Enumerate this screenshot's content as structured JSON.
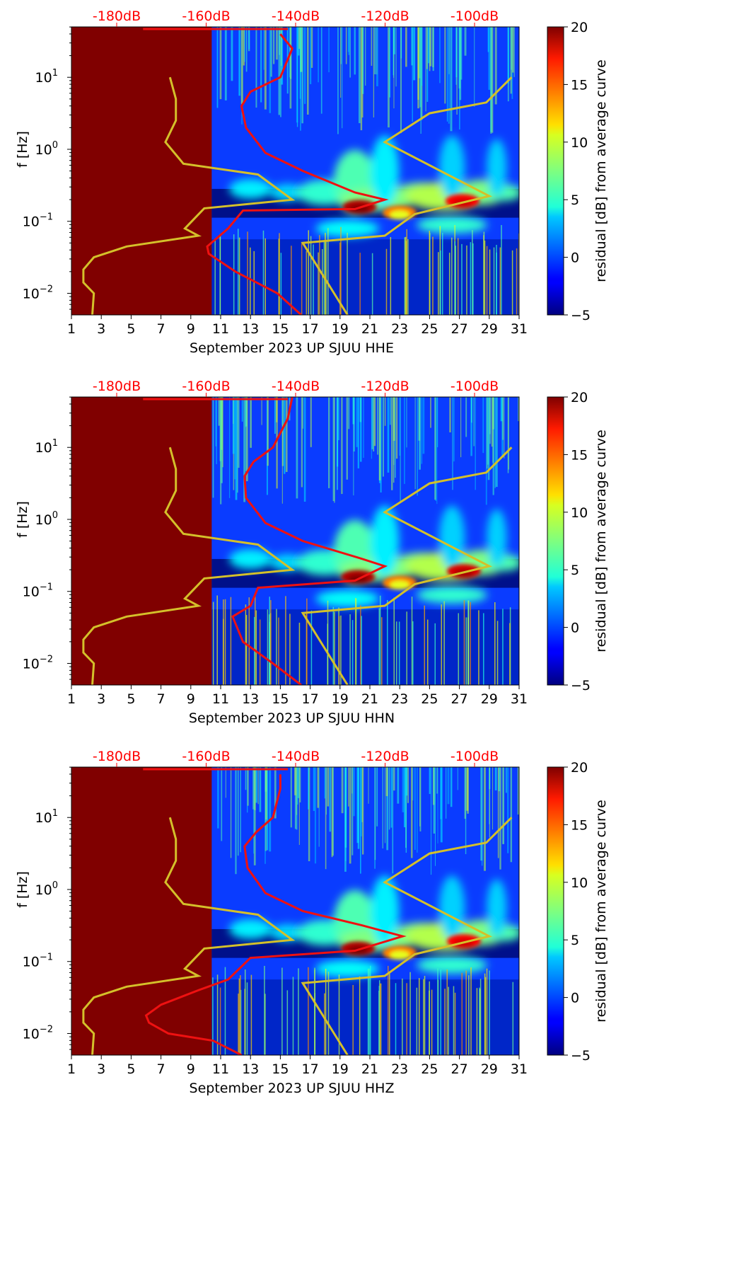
{
  "figure": {
    "type": "spectrogram-panels",
    "common": {
      "ylabel": "f [Hz]",
      "colorbar_label": "residual [dB] from average curve",
      "colorbar_range": [
        -5,
        20
      ],
      "colorbar_ticks": [
        "20",
        "15",
        "10",
        "5",
        "0",
        "−5"
      ],
      "x_tick_labels": [
        "1",
        "3",
        "5",
        "7",
        "9",
        "11",
        "13",
        "15",
        "17",
        "19",
        "21",
        "23",
        "25",
        "27",
        "29",
        "31"
      ],
      "y_tick_labels": [
        {
          "base": "10",
          "exp": "1"
        },
        {
          "base": "10",
          "exp": "0"
        },
        {
          "base": "10",
          "exp": "−1"
        },
        {
          "base": "10",
          "exp": "−2"
        }
      ],
      "top_axis_labels": [
        "-180dB",
        "-160dB",
        "-140dB",
        "-120dB",
        "-100dB"
      ],
      "masked_region_color": "#800000",
      "noise_model_color": "#d4c02a",
      "psd_curve_color": "#ee1111"
    }
  },
  "chart_data": [
    {
      "type": "heatmap",
      "xlabel": "September 2023 UP SJUU  HHE",
      "ylabel": "f [Hz]",
      "xlim": [
        1,
        31
      ],
      "ylim_log10_hz": [
        -2.3,
        1.7
      ],
      "masked_until_day": 10.4,
      "noise_model_curve_day_vs_log10f": [
        [
          7.6,
          1.0
        ],
        [
          8.0,
          0.7
        ],
        [
          8.0,
          0.4
        ],
        [
          7.3,
          0.1
        ],
        [
          8.5,
          -0.2
        ],
        [
          13.5,
          -0.35
        ],
        [
          15.8,
          -0.7
        ],
        [
          9.9,
          -0.82
        ],
        [
          8.6,
          -1.1
        ],
        [
          9.5,
          -1.2
        ],
        [
          4.7,
          -1.35
        ],
        [
          2.5,
          -1.5
        ],
        [
          1.8,
          -1.67
        ],
        [
          1.8,
          -1.85
        ],
        [
          2.5,
          -2.0
        ],
        [
          2.4,
          -2.3
        ]
      ],
      "noise_model_upper_curve": [
        [
          19.5,
          -2.3
        ],
        [
          16.5,
          -1.3
        ],
        [
          22.0,
          -1.2
        ],
        [
          24.0,
          -0.9
        ],
        [
          29.0,
          -0.65
        ],
        [
          22.0,
          0.1
        ],
        [
          25.0,
          0.5
        ],
        [
          28.8,
          0.65
        ],
        [
          30.5,
          1.0
        ]
      ],
      "psd_curve_day_vs_log10f": [
        [
          16.4,
          -2.3
        ],
        [
          14.8,
          -2.0
        ],
        [
          12.0,
          -1.7
        ],
        [
          10.2,
          -1.45
        ],
        [
          10.1,
          -1.35
        ],
        [
          11.5,
          -1.1
        ],
        [
          12.5,
          -0.85
        ],
        [
          20.0,
          -0.83
        ],
        [
          22.0,
          -0.7
        ],
        [
          20.0,
          -0.6
        ],
        [
          16.5,
          -0.3
        ],
        [
          14.0,
          -0.05
        ],
        [
          12.7,
          0.3
        ],
        [
          12.4,
          0.6
        ],
        [
          13.0,
          0.8
        ],
        [
          15.0,
          1.0
        ],
        [
          15.8,
          1.4
        ],
        [
          15.0,
          1.6
        ]
      ],
      "hot_spots": [
        {
          "day": 20.3,
          "log10f": -0.8,
          "value": 20
        },
        {
          "day": 27.2,
          "log10f": -0.72,
          "value": 18
        },
        {
          "day": 23.0,
          "log10f": -0.88,
          "value": 10
        }
      ]
    },
    {
      "type": "heatmap",
      "xlabel": "September 2023 UP SJUU  HHN",
      "ylabel": "f [Hz]",
      "xlim": [
        1,
        31
      ],
      "ylim_log10_hz": [
        -2.3,
        1.7
      ],
      "masked_until_day": 10.4,
      "noise_model_curve_day_vs_log10f": [
        [
          7.6,
          1.0
        ],
        [
          8.0,
          0.7
        ],
        [
          8.0,
          0.4
        ],
        [
          7.3,
          0.1
        ],
        [
          8.5,
          -0.2
        ],
        [
          13.5,
          -0.35
        ],
        [
          15.8,
          -0.7
        ],
        [
          9.9,
          -0.82
        ],
        [
          8.6,
          -1.1
        ],
        [
          9.5,
          -1.2
        ],
        [
          4.7,
          -1.35
        ],
        [
          2.5,
          -1.5
        ],
        [
          1.8,
          -1.67
        ],
        [
          1.8,
          -1.85
        ],
        [
          2.5,
          -2.0
        ],
        [
          2.4,
          -2.3
        ]
      ],
      "noise_model_upper_curve": [
        [
          19.5,
          -2.3
        ],
        [
          16.5,
          -1.3
        ],
        [
          22.0,
          -1.2
        ],
        [
          24.0,
          -0.9
        ],
        [
          29.0,
          -0.65
        ],
        [
          22.0,
          0.1
        ],
        [
          25.0,
          0.5
        ],
        [
          28.8,
          0.65
        ],
        [
          30.5,
          1.0
        ]
      ],
      "psd_curve_day_vs_log10f": [
        [
          16.4,
          -2.3
        ],
        [
          14.5,
          -2.0
        ],
        [
          12.5,
          -1.7
        ],
        [
          11.8,
          -1.35
        ],
        [
          13.0,
          -1.2
        ],
        [
          13.5,
          -0.95
        ],
        [
          20.0,
          -0.85
        ],
        [
          22.0,
          -0.65
        ],
        [
          20.5,
          -0.55
        ],
        [
          16.5,
          -0.3
        ],
        [
          14.0,
          -0.05
        ],
        [
          12.7,
          0.3
        ],
        [
          12.6,
          0.6
        ],
        [
          13.2,
          0.8
        ],
        [
          14.5,
          1.0
        ],
        [
          15.5,
          1.4
        ],
        [
          15.8,
          1.7
        ]
      ],
      "hot_spots": [
        {
          "day": 20.2,
          "log10f": -0.8,
          "value": 20
        },
        {
          "day": 27.3,
          "log10f": -0.72,
          "value": 19
        },
        {
          "day": 23.0,
          "log10f": -0.88,
          "value": 10
        }
      ]
    },
    {
      "type": "heatmap",
      "xlabel": "September 2023 UP SJUU  HHZ",
      "ylabel": "f [Hz]",
      "xlim": [
        1,
        31
      ],
      "ylim_log10_hz": [
        -2.3,
        1.7
      ],
      "masked_until_day": 10.4,
      "noise_model_curve_day_vs_log10f": [
        [
          7.6,
          1.0
        ],
        [
          8.0,
          0.7
        ],
        [
          8.0,
          0.4
        ],
        [
          7.3,
          0.1
        ],
        [
          8.5,
          -0.2
        ],
        [
          13.5,
          -0.35
        ],
        [
          15.8,
          -0.7
        ],
        [
          9.9,
          -0.82
        ],
        [
          8.6,
          -1.1
        ],
        [
          9.5,
          -1.2
        ],
        [
          4.7,
          -1.35
        ],
        [
          2.5,
          -1.5
        ],
        [
          1.8,
          -1.67
        ],
        [
          1.8,
          -1.85
        ],
        [
          2.5,
          -2.0
        ],
        [
          2.4,
          -2.3
        ]
      ],
      "noise_model_upper_curve": [
        [
          19.5,
          -2.3
        ],
        [
          16.5,
          -1.3
        ],
        [
          22.0,
          -1.2
        ],
        [
          24.0,
          -0.9
        ],
        [
          29.0,
          -0.65
        ],
        [
          22.0,
          0.1
        ],
        [
          25.0,
          0.5
        ],
        [
          28.8,
          0.65
        ],
        [
          30.5,
          1.0
        ]
      ],
      "psd_curve_day_vs_log10f": [
        [
          12.4,
          -2.3
        ],
        [
          10.5,
          -2.1
        ],
        [
          7.5,
          -2.0
        ],
        [
          6.2,
          -1.85
        ],
        [
          6.0,
          -1.75
        ],
        [
          7.0,
          -1.6
        ],
        [
          9.5,
          -1.4
        ],
        [
          11.5,
          -1.25
        ],
        [
          13.0,
          -0.95
        ],
        [
          20.0,
          -0.85
        ],
        [
          23.2,
          -0.65
        ],
        [
          20.5,
          -0.5
        ],
        [
          16.5,
          -0.3
        ],
        [
          14.0,
          -0.05
        ],
        [
          12.8,
          0.3
        ],
        [
          12.6,
          0.6
        ],
        [
          13.4,
          0.8
        ],
        [
          14.5,
          1.0
        ],
        [
          15.0,
          1.4
        ],
        [
          15.0,
          1.6
        ]
      ],
      "hot_spots": [
        {
          "day": 20.2,
          "log10f": -0.82,
          "value": 20
        },
        {
          "day": 27.3,
          "log10f": -0.72,
          "value": 18
        },
        {
          "day": 23.0,
          "log10f": -0.88,
          "value": 10
        }
      ]
    }
  ]
}
